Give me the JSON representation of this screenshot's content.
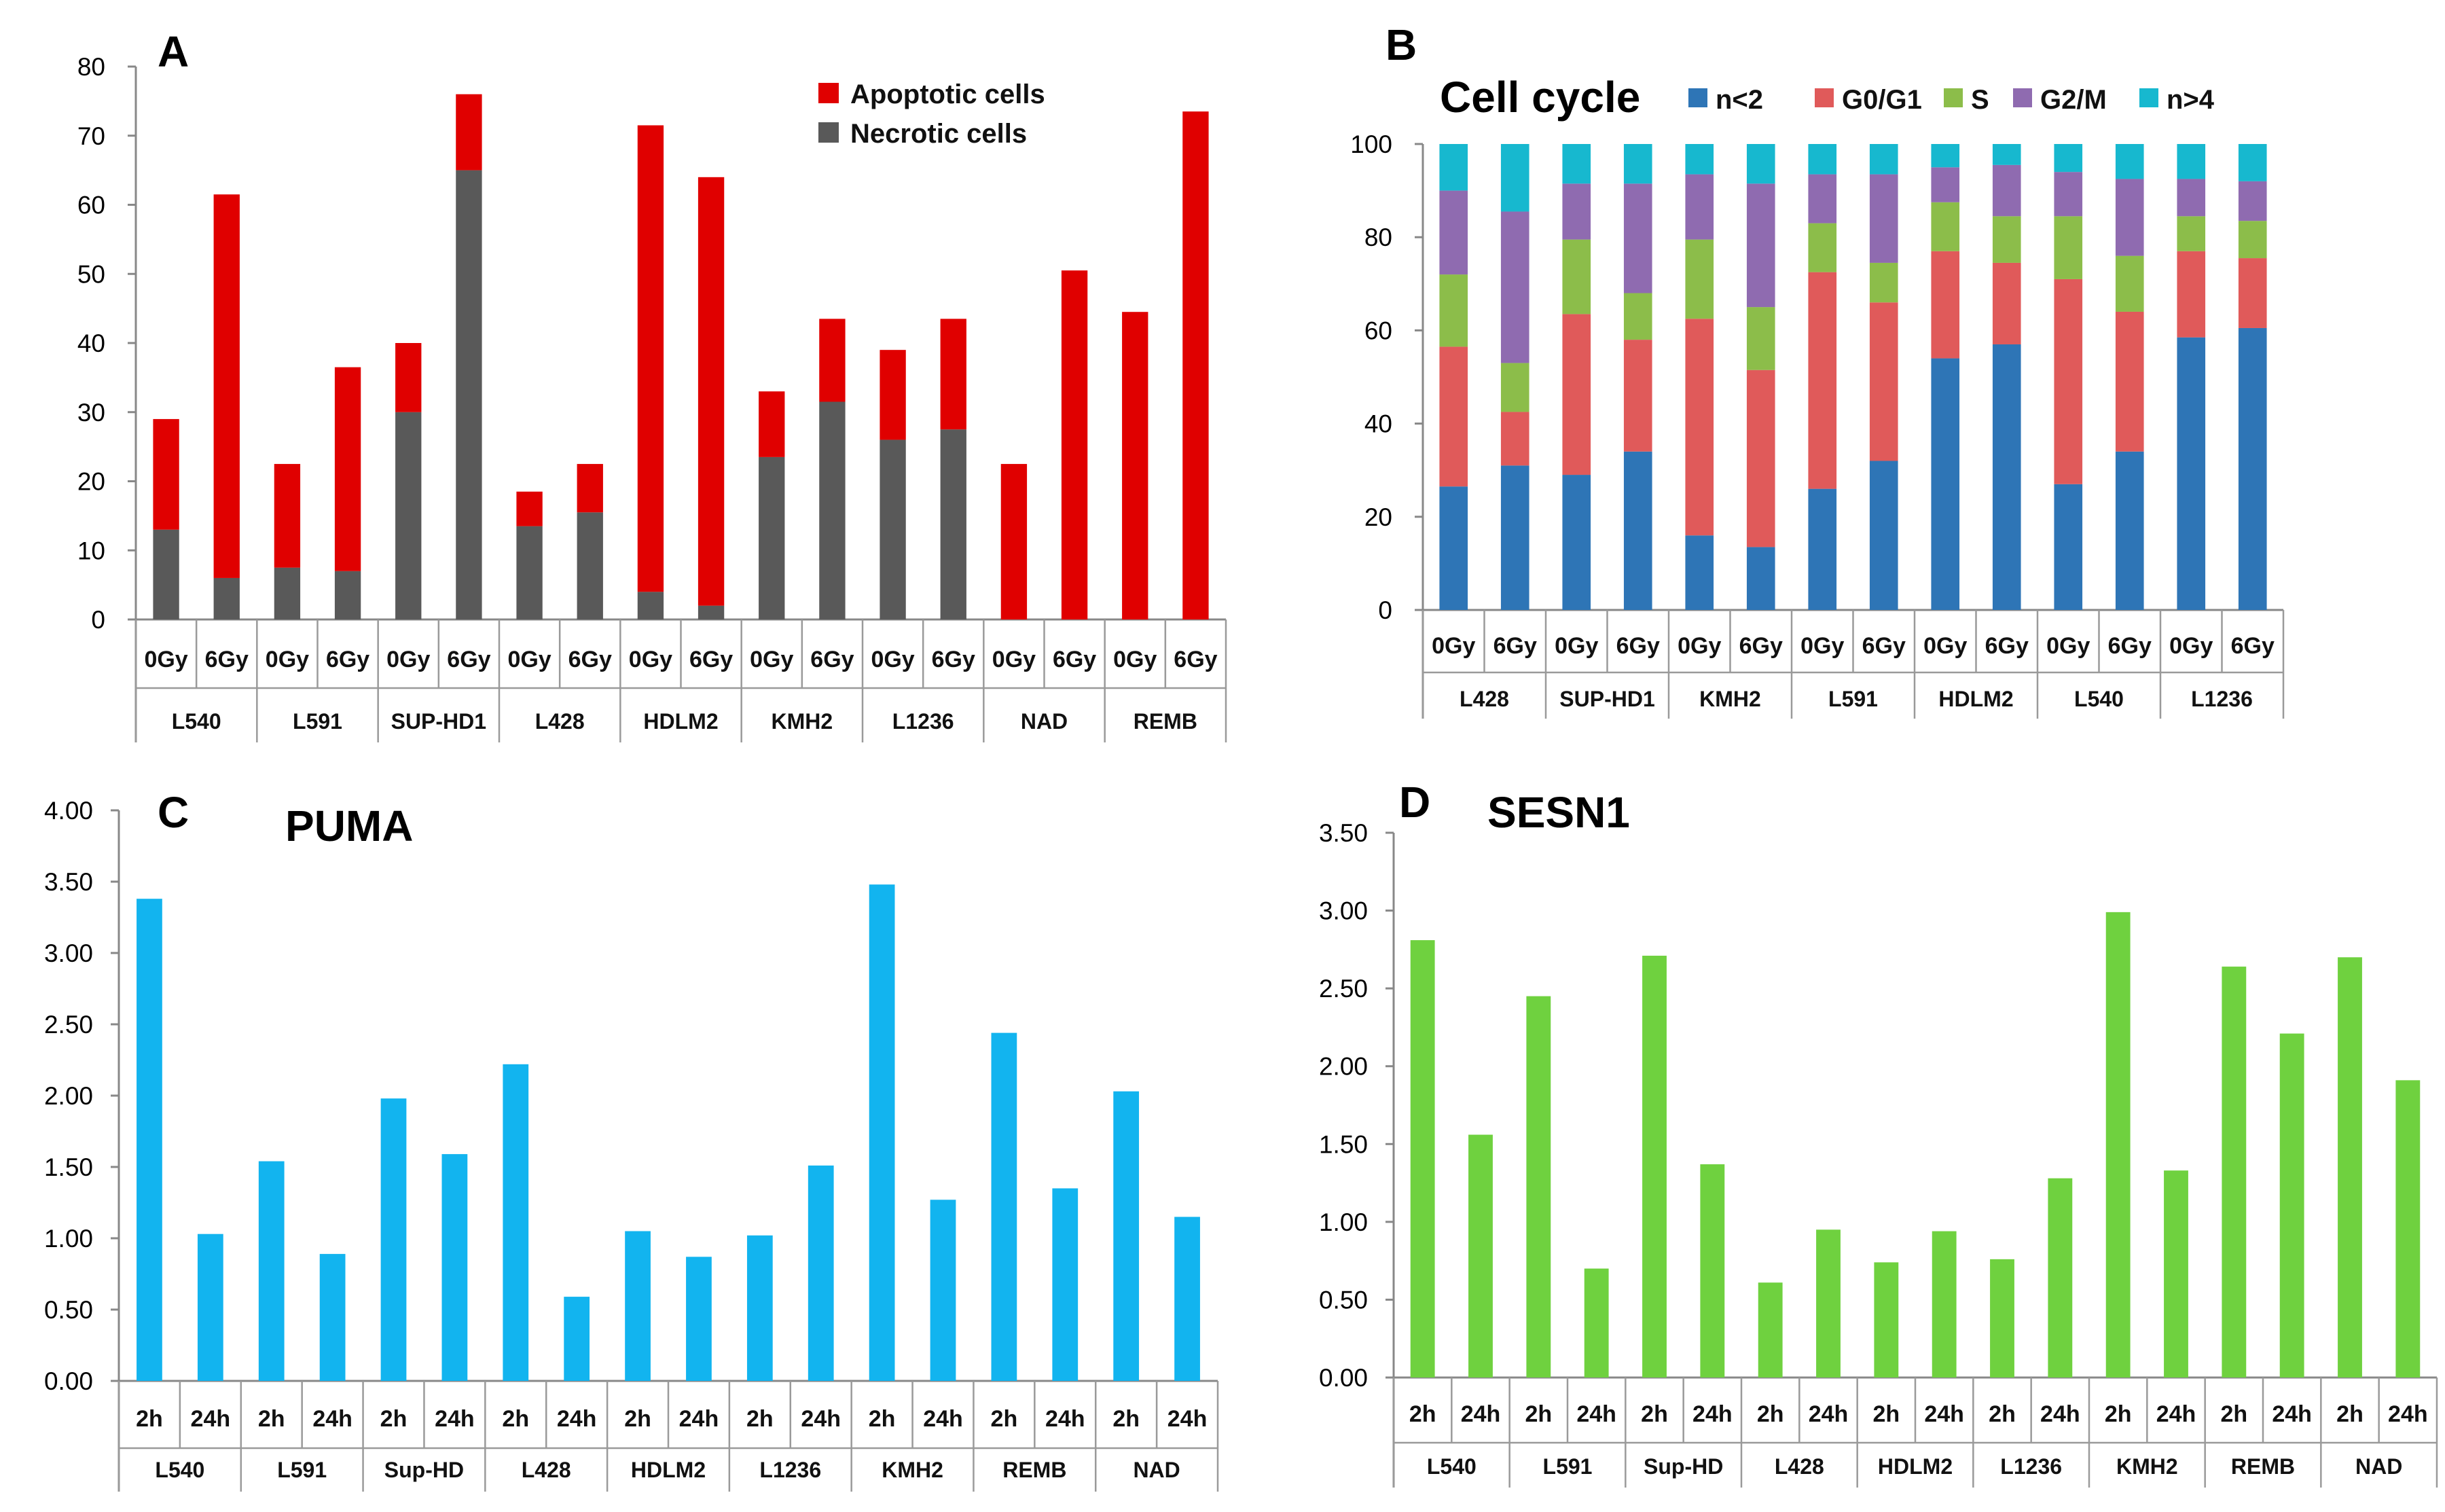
{
  "chart_data": [
    {
      "panel": "A",
      "type": "bar",
      "stacked": true,
      "title": "",
      "ylim": [
        0,
        80
      ],
      "yticks": [
        "0",
        "10",
        "20",
        "30",
        "40",
        "50",
        "60",
        "70",
        "80"
      ],
      "categories": [
        "0Gy",
        "6Gy",
        "0Gy",
        "6Gy",
        "0Gy",
        "6Gy",
        "0Gy",
        "6Gy",
        "0Gy",
        "6Gy",
        "0Gy",
        "6Gy",
        "0Gy",
        "6Gy",
        "0Gy",
        "6Gy",
        "0Gy",
        "6Gy"
      ],
      "groups": [
        "L540",
        "L591",
        "SUP-HD1",
        "L428",
        "HDLM2",
        "KMH2",
        "L1236",
        "NAD",
        "REMB"
      ],
      "legend": [
        "Apoptotic cells",
        "Necrotic cells"
      ],
      "series": [
        {
          "name": "Necrotic cells",
          "color": "#595959",
          "values": [
            13,
            6,
            7.5,
            7,
            30,
            65,
            13.5,
            15.5,
            4,
            2,
            23.5,
            31.5,
            26,
            27.5,
            0,
            0,
            0,
            0
          ]
        },
        {
          "name": "Apoptotic cells",
          "color": "#e00000",
          "values": [
            16,
            55.5,
            15,
            29.5,
            10,
            11,
            5,
            7,
            67.5,
            62,
            9.5,
            12,
            13,
            16,
            22.5,
            50.5,
            44.5,
            73.5
          ]
        }
      ]
    },
    {
      "panel": "B",
      "type": "bar",
      "stacked": true,
      "title": "Cell cycle",
      "ylim": [
        0,
        100
      ],
      "yticks": [
        "0",
        "20",
        "40",
        "60",
        "80",
        "100"
      ],
      "categories": [
        "0Gy",
        "6Gy",
        "0Gy",
        "6Gy",
        "0Gy",
        "6Gy",
        "0Gy",
        "6Gy",
        "0Gy",
        "6Gy",
        "0Gy",
        "6Gy",
        "0Gy",
        "6Gy"
      ],
      "groups": [
        "L428",
        "SUP-HD1",
        "KMH2",
        "L591",
        "HDLM2",
        "L540",
        "L1236"
      ],
      "legend": [
        "n<2",
        "G0/G1",
        "S",
        "G2/M",
        "n>4"
      ],
      "series": [
        {
          "name": "n<2",
          "color": "#2e75b6",
          "values": [
            26.5,
            31,
            29,
            34,
            16,
            13.5,
            26,
            32,
            54,
            57,
            27,
            34,
            58.5,
            60.5
          ]
        },
        {
          "name": "G0/G1",
          "color": "#e05a5a",
          "values": [
            30,
            11.5,
            34.5,
            24,
            46.5,
            38,
            46.5,
            34,
            23,
            17.5,
            44,
            30,
            18.5,
            15
          ]
        },
        {
          "name": "S",
          "color": "#8cbd4a",
          "values": [
            15.5,
            10.5,
            16,
            10,
            17,
            13.5,
            10.5,
            8.5,
            10.5,
            10,
            13.5,
            12,
            7.5,
            8
          ]
        },
        {
          "name": "G2/M",
          "color": "#8f6bb0",
          "values": [
            18,
            32.5,
            12,
            23.5,
            14,
            26.5,
            10.5,
            19,
            7.5,
            11,
            9.5,
            16.5,
            8,
            8.5
          ]
        },
        {
          "name": "n>4",
          "color": "#17b8cf",
          "values": [
            10,
            14.5,
            8.5,
            8.5,
            6.5,
            8.5,
            6.5,
            6.5,
            5,
            4.5,
            6,
            7.5,
            7.5,
            8
          ]
        }
      ]
    },
    {
      "panel": "C",
      "type": "bar",
      "stacked": false,
      "title": "PUMA",
      "ylim": [
        0,
        4
      ],
      "yticks": [
        "0.00",
        "0.50",
        "1.00",
        "1.50",
        "2.00",
        "2.50",
        "3.00",
        "3.50",
        "4.00"
      ],
      "categories": [
        "2h",
        "24h",
        "2h",
        "24h",
        "2h",
        "24h",
        "2h",
        "24h",
        "2h",
        "24h",
        "2h",
        "24h",
        "2h",
        "24h",
        "2h",
        "24h",
        "2h",
        "24h"
      ],
      "groups": [
        "L540",
        "L591",
        "Sup-HD",
        "L428",
        "HDLM2",
        "L1236",
        "KMH2",
        "REMB",
        "NAD"
      ],
      "series": [
        {
          "name": "PUMA",
          "color": "#12b4ef",
          "values": [
            3.38,
            1.03,
            1.54,
            0.89,
            1.98,
            1.59,
            2.22,
            0.59,
            1.05,
            0.87,
            1.02,
            1.51,
            3.48,
            1.27,
            2.44,
            1.35,
            2.03,
            1.15
          ]
        }
      ]
    },
    {
      "panel": "D",
      "type": "bar",
      "stacked": false,
      "title": "SESN1",
      "ylim": [
        0,
        3.5
      ],
      "yticks": [
        "0.00",
        "0.50",
        "1.00",
        "1.50",
        "2.00",
        "2.50",
        "3.00",
        "3.50"
      ],
      "categories": [
        "2h",
        "24h",
        "2h",
        "24h",
        "2h",
        "24h",
        "2h",
        "24h",
        "2h",
        "24h",
        "2h",
        "24h",
        "2h",
        "24h",
        "2h",
        "24h",
        "2h",
        "24h"
      ],
      "groups": [
        "L540",
        "L591",
        "Sup-HD",
        "L428",
        "HDLM2",
        "L1236",
        "KMH2",
        "REMB",
        "NAD"
      ],
      "series": [
        {
          "name": "SESN1",
          "color": "#6fd13f",
          "values": [
            2.81,
            1.56,
            2.45,
            0.7,
            2.71,
            1.37,
            0.61,
            0.95,
            0.74,
            0.94,
            0.76,
            1.28,
            2.99,
            1.33,
            2.64,
            2.21,
            2.7,
            1.91
          ]
        }
      ]
    }
  ]
}
